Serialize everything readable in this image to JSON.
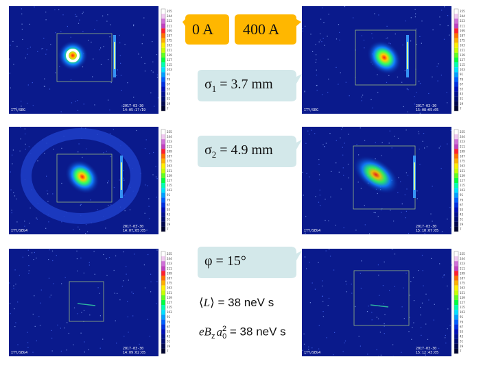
{
  "panels": [
    {
      "id": "p1",
      "label": "ITY/SEG",
      "stamp1": "2017-03-30",
      "stamp2": "14:05:1?:19",
      "kind": "dot"
    },
    {
      "id": "p2",
      "label": "ITY/SEG",
      "stamp1": "2017-03-30",
      "stamp2": "15:08:05:05",
      "kind": "spot"
    },
    {
      "id": "p3",
      "label": "ITY/SEG4",
      "stamp1": "2017-03-30",
      "stamp2": "14:07:05:05",
      "kind": "ring"
    },
    {
      "id": "p4",
      "label": "ITY/SEG4",
      "stamp1": "2017-03-30",
      "stamp2": "15:10:07:05",
      "kind": "wide"
    },
    {
      "id": "p5",
      "label": "ITY/SEG4",
      "stamp1": "2017-03-30",
      "stamp2": "14:09:02:05",
      "kind": "line"
    },
    {
      "id": "p6",
      "label": "ITY/SEG4",
      "stamp1": "2017-03-30",
      "stamp2": "15:12:43:05",
      "kind": "line2"
    }
  ],
  "colorbar_ticks": [
    "255",
    "244",
    "223",
    "211",
    "199",
    "187",
    "175",
    "163",
    "151",
    "139",
    "127",
    "115",
    "103",
    "91",
    "79",
    "67",
    "55",
    "43",
    "31",
    "19",
    "7"
  ],
  "labels": {
    "current_0": "0 A",
    "current_400": "400 A",
    "sigma1": "σ",
    "sigma1_sub": "1",
    "sigma1_val": " = 3.7 mm",
    "sigma2": "σ",
    "sigma2_sub": "2",
    "sigma2_val": " = 4.9 mm",
    "phi": "φ = 15°",
    "eq1_left": "⟨",
    "eq1_var": "L",
    "eq1_right": "⟩ = 38 neV s",
    "eq2_var": "eB",
    "eq2_sub": "z",
    "eq2_a": "a",
    "eq2_sup": "2",
    "eq2_sub0": "0",
    "eq2_val": " = 38 neV s"
  },
  "colors": {
    "orange": "#ffb700",
    "lightblue": "#d3e8ea",
    "background": "#0a1a8c"
  }
}
